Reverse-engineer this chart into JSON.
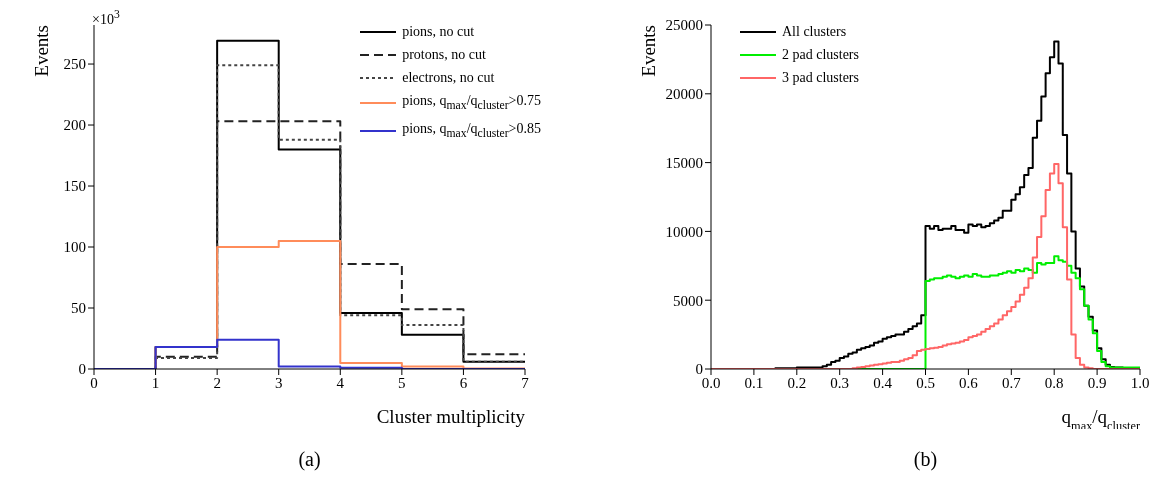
{
  "chart_data": [
    {
      "type": "histogram",
      "xlabel": "Cluster multiplicity",
      "ylabel": "Events",
      "annotations": [
        "×10$^{3}$",
        "(a)"
      ],
      "bins": [
        0,
        1,
        2,
        3,
        4,
        5,
        6,
        7
      ],
      "series": [
        {
          "name": "pions, no cut",
          "color": "#000000",
          "line_style": "solid",
          "values": [
            0,
            18,
            269,
            180,
            46,
            28,
            6
          ]
        },
        {
          "name": "protons, no cut",
          "color": "#222222",
          "line_style": "dashed",
          "values": [
            0,
            10,
            203,
            203,
            86,
            49,
            12
          ]
        },
        {
          "name": "electrons, no cut",
          "color": "#444444",
          "line_style": "dotted",
          "values": [
            0,
            9,
            249,
            188,
            44,
            36,
            6
          ]
        },
        {
          "name": "pions, q$_{max}$/q$_{cluster}$>0.75",
          "color": "#ff8c5a",
          "line_style": "solid",
          "values": [
            0,
            18,
            100,
            105,
            5,
            2,
            0.5
          ]
        },
        {
          "name": "pions, q$_{max}$/q$_{cluster}$>0.85",
          "color": "#3333cc",
          "line_style": "solid",
          "values": [
            0,
            18,
            24,
            2,
            1,
            0,
            0
          ]
        }
      ],
      "xlim": [
        0,
        7
      ],
      "xticks": [
        0,
        1,
        2,
        3,
        4,
        5,
        6,
        7
      ],
      "ylim": [
        0,
        282
      ],
      "yticks": [
        0,
        50,
        100,
        150,
        200,
        250
      ],
      "legend": "top right",
      "grid": false
    },
    {
      "type": "histogram",
      "xlabel": "q$_{max}$/q$_{cluster}$",
      "ylabel": "Events",
      "annotations": [
        "(b)"
      ],
      "bins": [
        0,
        0.01,
        0.02,
        0.03,
        0.04,
        0.05,
        0.06,
        0.07,
        0.08,
        0.09,
        0.1,
        0.11,
        0.12,
        0.13,
        0.14,
        0.15,
        0.16,
        0.17,
        0.18,
        0.19,
        0.2,
        0.21,
        0.22,
        0.23,
        0.24,
        0.25,
        0.26,
        0.27,
        0.28,
        0.29,
        0.3,
        0.31,
        0.32,
        0.33,
        0.34,
        0.35,
        0.36,
        0.37,
        0.38,
        0.39,
        0.4,
        0.41,
        0.42,
        0.43,
        0.44,
        0.45,
        0.46,
        0.47,
        0.48,
        0.49,
        0.5,
        0.51,
        0.52,
        0.53,
        0.54,
        0.55,
        0.56,
        0.57,
        0.58,
        0.59,
        0.6,
        0.61,
        0.62,
        0.63,
        0.64,
        0.65,
        0.66,
        0.67,
        0.68,
        0.69,
        0.7,
        0.71,
        0.72,
        0.73,
        0.74,
        0.75,
        0.76,
        0.77,
        0.78,
        0.79,
        0.8,
        0.81,
        0.82,
        0.83,
        0.84,
        0.85,
        0.86,
        0.87,
        0.88,
        0.89,
        0.9,
        0.91,
        0.92,
        0.93,
        0.94,
        0.95,
        0.96,
        0.97,
        0.98,
        0.99,
        1
      ],
      "series": [
        {
          "name": "All clusters",
          "color": "#000000",
          "values": [
            0,
            0,
            0,
            0,
            0,
            0,
            0,
            0,
            0,
            0,
            0,
            0,
            0,
            0,
            0,
            50,
            50,
            50,
            50,
            50,
            100,
            100,
            100,
            100,
            100,
            100,
            200,
            300,
            500,
            600,
            800,
            900,
            1100,
            1200,
            1400,
            1500,
            1600,
            1700,
            1900,
            2000,
            2200,
            2300,
            2400,
            2500,
            2500,
            2700,
            2900,
            3100,
            3300,
            3900,
            10400,
            10200,
            10400,
            10100,
            10200,
            10200,
            10400,
            10100,
            10100,
            9900,
            10500,
            10400,
            10500,
            10300,
            10400,
            10600,
            10800,
            11000,
            11500,
            11500,
            12300,
            12700,
            13200,
            14100,
            14600,
            16800,
            18050,
            19800,
            21500,
            22650,
            23800,
            22200,
            17000,
            14200,
            10000,
            7300,
            6000,
            4600,
            3800,
            2800,
            1500,
            700,
            300,
            150,
            100,
            100,
            50,
            50,
            50,
            50
          ]
        },
        {
          "name": "2 pad clusters",
          "color": "#00ee00",
          "values": [
            0,
            0,
            0,
            0,
            0,
            0,
            0,
            0,
            0,
            0,
            0,
            0,
            0,
            0,
            0,
            0,
            0,
            0,
            0,
            0,
            0,
            0,
            0,
            0,
            0,
            0,
            0,
            0,
            0,
            0,
            0,
            0,
            0,
            0,
            0,
            0,
            0,
            0,
            0,
            0,
            0,
            0,
            0,
            0,
            0,
            0,
            0,
            0,
            0,
            0,
            6400,
            6500,
            6600,
            6600,
            6700,
            6800,
            6700,
            6600,
            6700,
            6800,
            6700,
            6900,
            6800,
            6700,
            6700,
            6800,
            6800,
            6900,
            7000,
            7100,
            7000,
            7200,
            7100,
            7300,
            7200,
            7000,
            7700,
            7600,
            7700,
            7700,
            8200,
            7900,
            7800,
            7500,
            7000,
            6600,
            5800,
            4600,
            3600,
            2600,
            1300,
            500,
            200,
            100,
            100,
            100,
            100,
            100,
            100,
            100
          ]
        },
        {
          "name": "3 pad clusters",
          "color": "#ff6666",
          "values": [
            0,
            0,
            0,
            0,
            0,
            0,
            0,
            0,
            0,
            0,
            0,
            0,
            0,
            0,
            0,
            0,
            0,
            0,
            0,
            0,
            0,
            0,
            0,
            0,
            0,
            0,
            0,
            0,
            0,
            0,
            0,
            0,
            0,
            50,
            100,
            150,
            200,
            250,
            300,
            350,
            400,
            450,
            500,
            500,
            600,
            700,
            800,
            1000,
            1300,
            1400,
            1450,
            1500,
            1550,
            1600,
            1700,
            1800,
            1850,
            1900,
            2000,
            2100,
            2300,
            2400,
            2500,
            2700,
            2900,
            3100,
            3300,
            3600,
            3900,
            4200,
            4500,
            4900,
            5400,
            5900,
            6600,
            8100,
            9600,
            11100,
            13000,
            14200,
            14900,
            13500,
            10300,
            6500,
            2500,
            800,
            300,
            100,
            50,
            0,
            0,
            0,
            0,
            0,
            0,
            0,
            0,
            0,
            0,
            0
          ]
        }
      ],
      "xlim": [
        0,
        1
      ],
      "xticks": [
        {
          "value": 0,
          "label": "0.0"
        },
        0.1,
        0.2,
        0.3,
        0.4,
        0.5,
        0.6,
        0.7,
        0.8,
        0.9,
        {
          "value": 1,
          "label": "1.0"
        }
      ],
      "ylim": [
        0,
        25000
      ],
      "yticks": [
        0,
        5000,
        10000,
        15000,
        20000,
        25000
      ],
      "legend": "top left",
      "grid": false
    }
  ]
}
